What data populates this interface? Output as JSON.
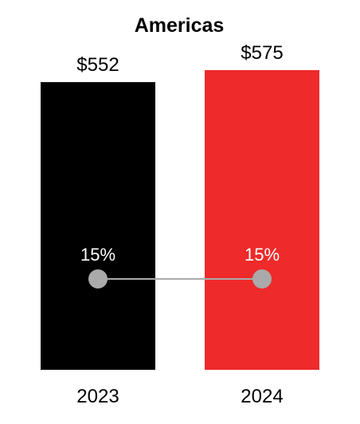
{
  "chart_data": {
    "type": "bar",
    "title": "Americas",
    "categories": [
      "2023",
      "2024"
    ],
    "values": [
      552,
      575
    ],
    "value_labels": [
      "$552",
      "$575"
    ],
    "colors": [
      "#000000",
      "#ee2a2a"
    ],
    "ylim": [
      0,
      575
    ],
    "overlay_series": {
      "type": "line",
      "values": [
        15,
        15
      ],
      "labels": [
        "15%",
        "15%"
      ],
      "marker_color": "#aaaaaa",
      "line_color": "#aaaaaa"
    },
    "grid": false,
    "legend": "none"
  }
}
